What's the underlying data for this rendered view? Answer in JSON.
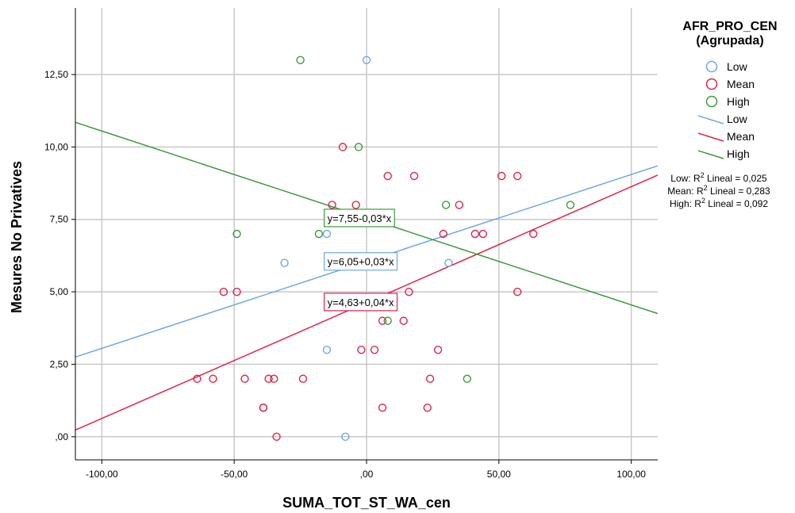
{
  "chart_data": {
    "type": "scatter",
    "xlabel": "SUMA_TOT_ST_WA_cen",
    "ylabel": "Mesures No Privatives",
    "xlim": [
      -110,
      110
    ],
    "ylim": [
      -0.8,
      14.8
    ],
    "x_ticks": [
      -100,
      -50,
      0,
      50,
      100
    ],
    "x_tick_labels": [
      "-100,00",
      "-50,00",
      ",00",
      "50,00",
      "100,00"
    ],
    "y_ticks": [
      0,
      2.5,
      5,
      7.5,
      10,
      12.5
    ],
    "y_tick_labels": [
      ",00",
      "2,50",
      "5,00",
      "7,50",
      "10,00",
      "12,50"
    ],
    "grid": true,
    "legend": {
      "title_line1": "AFR_PRO_CEN",
      "title_line2": "(Agrupada)",
      "placement": "right",
      "marker_labels": [
        "Low",
        "Mean",
        "High"
      ],
      "line_labels": [
        "Low",
        "Mean",
        "High"
      ]
    },
    "r2_labels": [
      {
        "prefix": "Low: R",
        "sup": "2",
        "suffix": " Lineal = 0,025"
      },
      {
        "prefix": "Mean: R",
        "sup": "2",
        "suffix": " Lineal = 0,283"
      },
      {
        "prefix": "High: R",
        "sup": "2",
        "suffix": " Lineal = 0,092"
      }
    ],
    "series": [
      {
        "name": "Low",
        "color": "#6fa8e6",
        "points": [
          [
            0,
            13
          ],
          [
            -15,
            7
          ],
          [
            -31,
            6
          ],
          [
            31,
            6
          ],
          [
            -15,
            3
          ],
          [
            -8,
            0
          ]
        ],
        "fit": {
          "intercept": 6.05,
          "slope": 0.03,
          "equation": "y=6,05+0,03*x",
          "label_x": -16,
          "label_y": 6.05
        }
      },
      {
        "name": "Mean",
        "color": "#e0234b",
        "points": [
          [
            -9,
            10
          ],
          [
            -13,
            8
          ],
          [
            -4,
            8
          ],
          [
            8,
            9
          ],
          [
            18,
            9
          ],
          [
            51,
            9
          ],
          [
            57,
            9
          ],
          [
            29,
            7
          ],
          [
            35,
            8
          ],
          [
            41,
            7
          ],
          [
            44,
            7
          ],
          [
            63,
            7
          ],
          [
            -54,
            5
          ],
          [
            -49,
            5
          ],
          [
            16,
            5
          ],
          [
            57,
            5
          ],
          [
            6,
            4
          ],
          [
            14,
            4
          ],
          [
            -2,
            3
          ],
          [
            3,
            3
          ],
          [
            27,
            3
          ],
          [
            -64,
            2
          ],
          [
            -58,
            2
          ],
          [
            -46,
            2
          ],
          [
            -37,
            2
          ],
          [
            -35,
            2
          ],
          [
            -24,
            2
          ],
          [
            24,
            2
          ],
          [
            -39,
            1
          ],
          [
            -39,
            1
          ],
          [
            6,
            1
          ],
          [
            23,
            1
          ],
          [
            -34,
            0
          ]
        ],
        "fit": {
          "intercept": 4.63,
          "slope": 0.04,
          "equation": "y=4,63+0,04*x",
          "label_x": -16,
          "label_y": 4.65
        }
      },
      {
        "name": "High",
        "color": "#3c9a3c",
        "points": [
          [
            -25,
            13
          ],
          [
            -3,
            10
          ],
          [
            -49,
            7
          ],
          [
            -18,
            7
          ],
          [
            30,
            8
          ],
          [
            77,
            8
          ],
          [
            8,
            4
          ],
          [
            38,
            2
          ]
        ],
        "fit": {
          "intercept": 7.55,
          "slope": -0.03,
          "equation": "y=7,55-0,03*x",
          "label_x": -16,
          "label_y": 7.55
        }
      }
    ]
  }
}
